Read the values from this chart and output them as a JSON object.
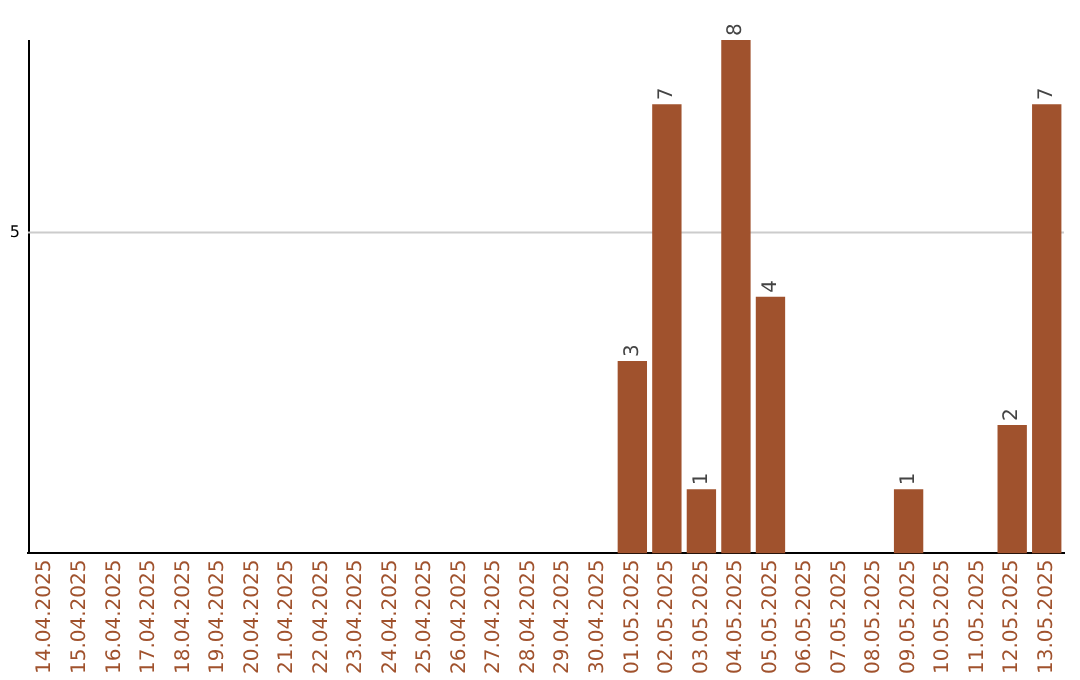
{
  "chart_data": {
    "type": "bar",
    "categories": [
      "14.04.2025",
      "15.04.2025",
      "16.04.2025",
      "17.04.2025",
      "18.04.2025",
      "19.04.2025",
      "20.04.2025",
      "21.04.2025",
      "22.04.2025",
      "23.04.2025",
      "24.04.2025",
      "25.04.2025",
      "26.04.2025",
      "27.04.2025",
      "28.04.2025",
      "29.04.2025",
      "30.04.2025",
      "01.05.2025",
      "02.05.2025",
      "03.05.2025",
      "04.05.2025",
      "05.05.2025",
      "06.05.2025",
      "07.05.2025",
      "08.05.2025",
      "09.05.2025",
      "10.05.2025",
      "11.05.2025",
      "12.05.2025",
      "13.05.2025"
    ],
    "values": [
      null,
      null,
      null,
      null,
      null,
      null,
      null,
      null,
      null,
      null,
      null,
      null,
      null,
      null,
      null,
      null,
      null,
      3,
      7,
      1,
      8,
      4,
      null,
      null,
      null,
      1,
      null,
      null,
      2,
      7
    ],
    "data_labels": true,
    "color": "#a0522d",
    "ylim": [
      0,
      8
    ],
    "ref_lines": [
      {
        "axis": "y",
        "value": 5,
        "label": "5",
        "color": "#cccccc"
      }
    ],
    "legend": false
  }
}
